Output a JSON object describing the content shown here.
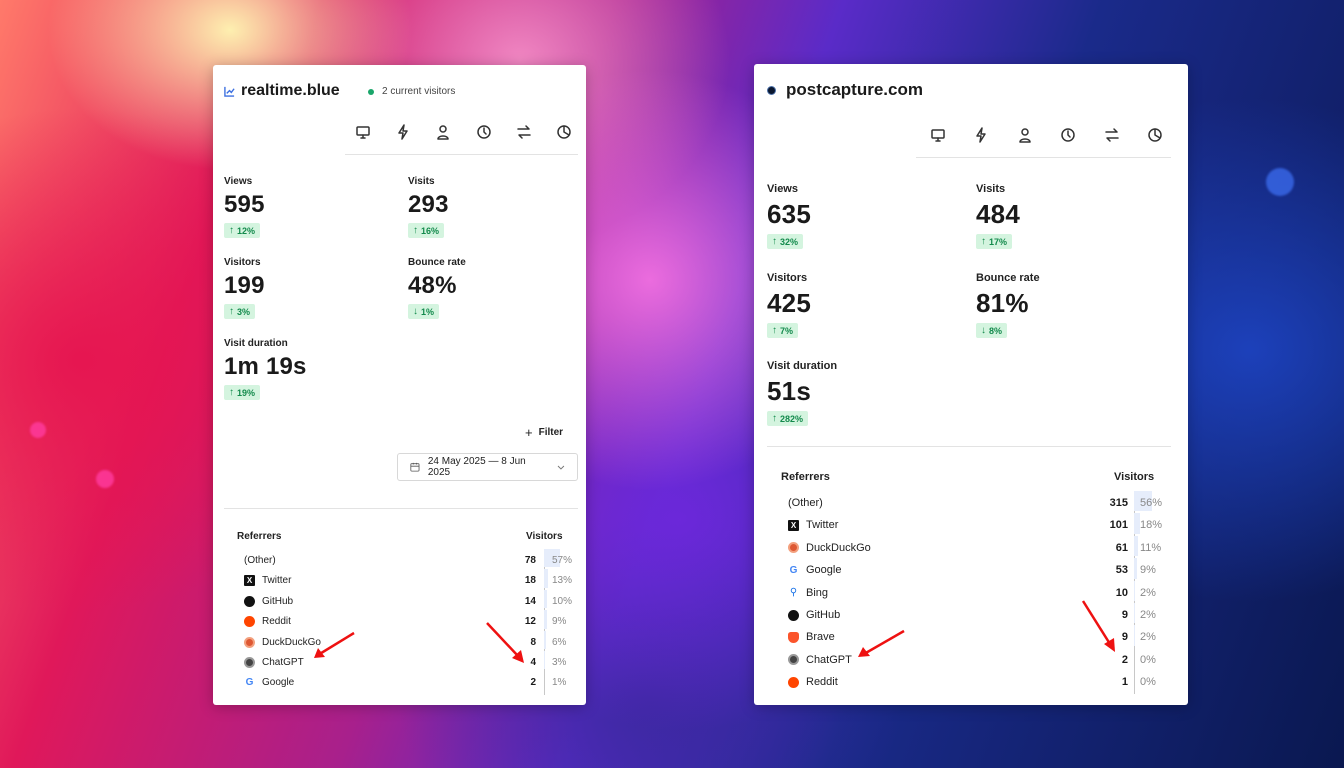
{
  "colors": {
    "accent_green": "#1aa66a",
    "badge_bg": "#d4f4df",
    "badge_text": "#138a4c",
    "arrow_red": "#e11"
  },
  "left": {
    "site": "realtime.blue",
    "site_icon": "chart-icon",
    "live_text": "2 current visitors",
    "tools": [
      "monitor-icon",
      "bolt-icon",
      "user-icon",
      "clock-icon",
      "swap-icon",
      "pie-icon"
    ],
    "metrics": {
      "views": {
        "label": "Views",
        "value": "595",
        "change": "12%",
        "dir": "↑"
      },
      "visits": {
        "label": "Visits",
        "value": "293",
        "change": "16%",
        "dir": "↑"
      },
      "visitors": {
        "label": "Visitors",
        "value": "199",
        "change": "3%",
        "dir": "↑"
      },
      "bounce": {
        "label": "Bounce rate",
        "value": "48%",
        "change": "1%",
        "dir": "↓"
      },
      "duration": {
        "label": "Visit duration",
        "value": "1m 19s",
        "change": "19%",
        "dir": "↑"
      }
    },
    "filter_label": "Filter",
    "date_range": "24 May 2025 — 8 Jun 2025",
    "referrers_header": "Referrers",
    "visitors_header": "Visitors",
    "referrers": [
      {
        "name": "(Other)",
        "icon": "none",
        "count": "78",
        "pct": "57%",
        "share": 0.57
      },
      {
        "name": "Twitter",
        "icon": "x-icon",
        "count": "18",
        "pct": "13%",
        "share": 0.13
      },
      {
        "name": "GitHub",
        "icon": "github-icon",
        "count": "14",
        "pct": "10%",
        "share": 0.1
      },
      {
        "name": "Reddit",
        "icon": "reddit-icon",
        "count": "12",
        "pct": "9%",
        "share": 0.09
      },
      {
        "name": "DuckDuckGo",
        "icon": "duckduckgo-icon",
        "count": "8",
        "pct": "6%",
        "share": 0.06
      },
      {
        "name": "ChatGPT",
        "icon": "chatgpt-icon",
        "count": "4",
        "pct": "3%",
        "share": 0.03
      },
      {
        "name": "Google",
        "icon": "google-icon",
        "count": "2",
        "pct": "1%",
        "share": 0.01
      }
    ]
  },
  "right": {
    "site": "postcapture.com",
    "site_icon": "dot-icon",
    "tools": [
      "monitor-icon",
      "bolt-icon",
      "user-icon",
      "clock-icon",
      "swap-icon",
      "pie-icon"
    ],
    "metrics": {
      "views": {
        "label": "Views",
        "value": "635",
        "change": "32%",
        "dir": "↑"
      },
      "visits": {
        "label": "Visits",
        "value": "484",
        "change": "17%",
        "dir": "↑"
      },
      "visitors": {
        "label": "Visitors",
        "value": "425",
        "change": "7%",
        "dir": "↑"
      },
      "bounce": {
        "label": "Bounce rate",
        "value": "81%",
        "change": "8%",
        "dir": "↓"
      },
      "duration": {
        "label": "Visit duration",
        "value": "51s",
        "change": "282%",
        "dir": "↑"
      }
    },
    "referrers_header": "Referrers",
    "visitors_header": "Visitors",
    "referrers": [
      {
        "name": "(Other)",
        "icon": "none",
        "count": "315",
        "pct": "56%",
        "share": 0.56
      },
      {
        "name": "Twitter",
        "icon": "x-icon",
        "count": "101",
        "pct": "18%",
        "share": 0.18
      },
      {
        "name": "DuckDuckGo",
        "icon": "duckduckgo-icon",
        "count": "61",
        "pct": "11%",
        "share": 0.11
      },
      {
        "name": "Google",
        "icon": "google-icon",
        "count": "53",
        "pct": "9%",
        "share": 0.09
      },
      {
        "name": "Bing",
        "icon": "bing-icon",
        "count": "10",
        "pct": "2%",
        "share": 0.02
      },
      {
        "name": "GitHub",
        "icon": "github-icon",
        "count": "9",
        "pct": "2%",
        "share": 0.02
      },
      {
        "name": "Brave",
        "icon": "brave-icon",
        "count": "9",
        "pct": "2%",
        "share": 0.02
      },
      {
        "name": "ChatGPT",
        "icon": "chatgpt-icon",
        "count": "2",
        "pct": "0%",
        "share": 0.0
      },
      {
        "name": "Reddit",
        "icon": "reddit-icon",
        "count": "1",
        "pct": "0%",
        "share": 0.0
      }
    ]
  }
}
